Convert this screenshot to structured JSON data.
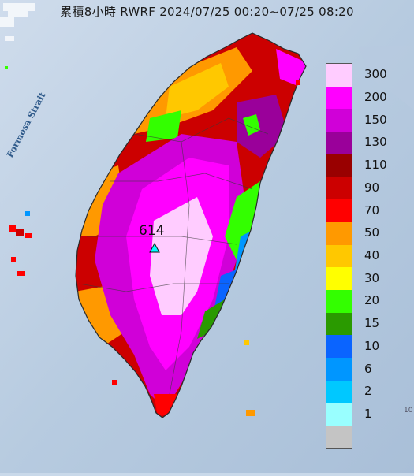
{
  "title": "累積8小時 RWRF 2024/07/25 00:20~07/25 08:20",
  "strait_label": "Formosa Strait",
  "max_value_label": "614",
  "corner_mark": "10",
  "legend": [
    {
      "label": "300",
      "color": "#ffccff"
    },
    {
      "label": "200",
      "color": "#ff00ff"
    },
    {
      "label": "150",
      "color": "#d000d8"
    },
    {
      "label": "130",
      "color": "#9a009a"
    },
    {
      "label": "110",
      "color": "#990000"
    },
    {
      "label": "90",
      "color": "#cc0000"
    },
    {
      "label": "70",
      "color": "#ff0000"
    },
    {
      "label": "50",
      "color": "#ff9900"
    },
    {
      "label": "40",
      "color": "#ffc800"
    },
    {
      "label": "30",
      "color": "#ffff00"
    },
    {
      "label": "20",
      "color": "#33ff00"
    },
    {
      "label": "15",
      "color": "#2a9a00"
    },
    {
      "label": "10",
      "color": "#0a64ff"
    },
    {
      "label": "6",
      "color": "#0096ff"
    },
    {
      "label": "2",
      "color": "#00c8ff"
    },
    {
      "label": "1",
      "color": "#99ffff"
    },
    {
      "label": "",
      "color": "#c4c4c4"
    }
  ]
}
